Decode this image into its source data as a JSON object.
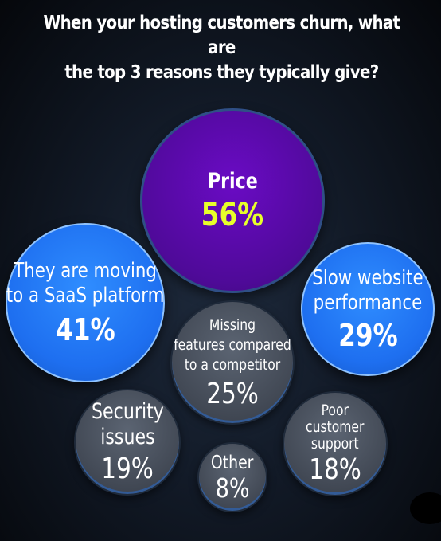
{
  "title": {
    "line1": "When your hosting customers churn, what are",
    "line2": "the top 3 reasons they typically give?"
  },
  "chart_data": {
    "type": "bubble",
    "title": "When your hosting customers churn, what are the top 3 reasons they typically give?",
    "unit": "%",
    "categories": [
      "Price",
      "They are moving to a SaaS platform",
      "Slow website performance",
      "Missing features compared to a competitor",
      "Security issues",
      "Poor customer support",
      "Other"
    ],
    "values": [
      56,
      41,
      29,
      25,
      19,
      18,
      8
    ],
    "labels": {
      "price": {
        "lines": [
          "Price"
        ],
        "value": "56%"
      },
      "saas": {
        "lines": [
          "They are moving",
          "to a SaaS platform"
        ],
        "value": "41%"
      },
      "slow": {
        "lines": [
          "Slow website",
          "performance"
        ],
        "value": "29%"
      },
      "missing": {
        "lines": [
          "Missing",
          "features compared",
          "to a competitor"
        ],
        "value": "25%"
      },
      "security": {
        "lines": [
          "Security",
          "issues"
        ],
        "value": "19%"
      },
      "support": {
        "lines": [
          "Poor",
          "customer",
          "support"
        ],
        "value": "18%"
      },
      "other": {
        "lines": [
          "Other"
        ],
        "value": "8%"
      }
    },
    "colors": {
      "top": "#4f0a99",
      "top_value": "#e8ff2a",
      "second_tier": "#1e6ff0",
      "third_tier": "#434a56",
      "text": "#ffffff"
    }
  }
}
